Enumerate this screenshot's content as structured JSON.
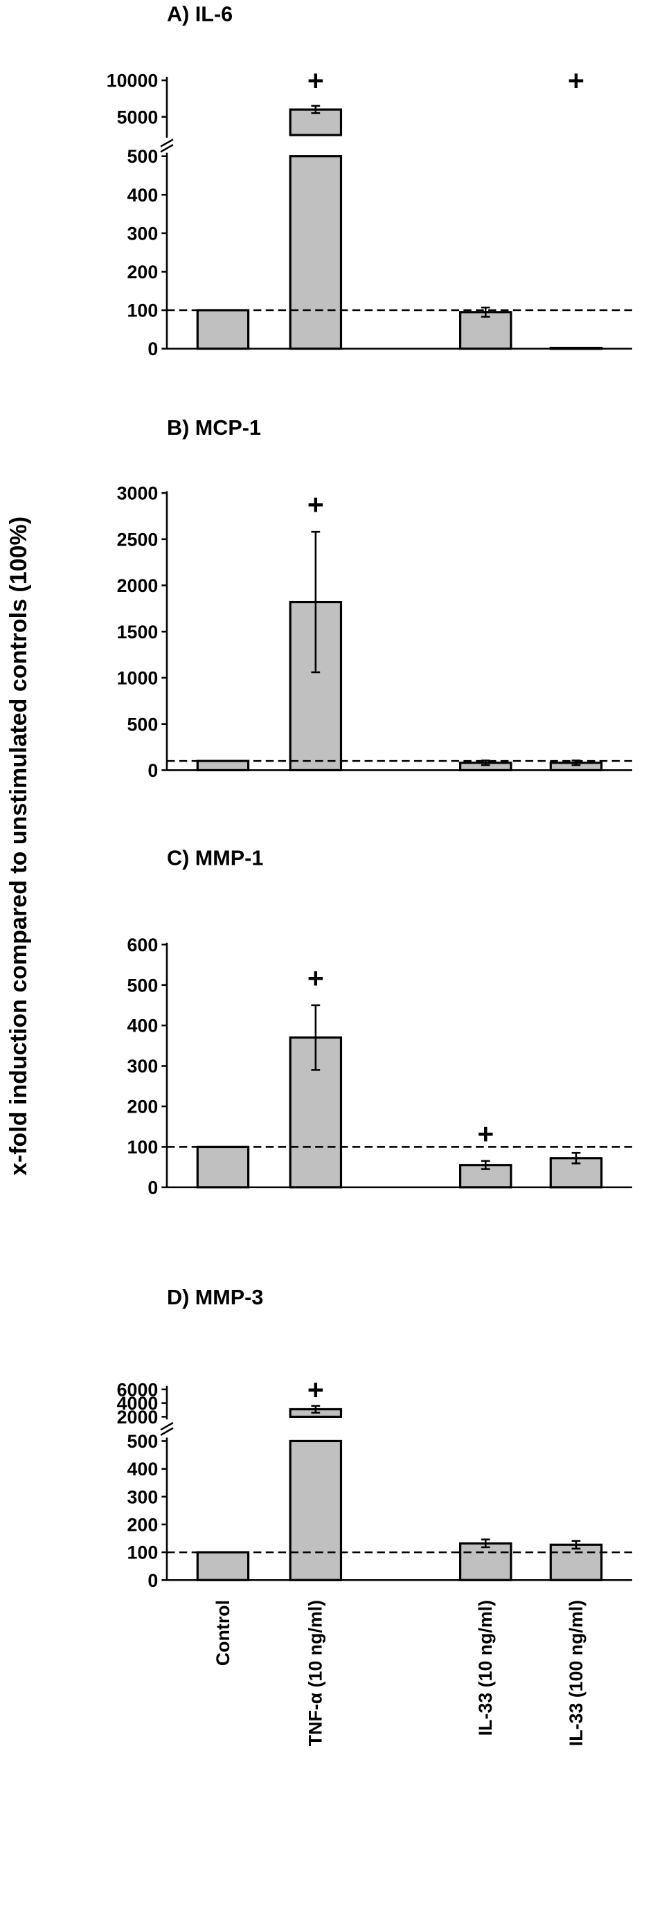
{
  "y_axis_label": "x-fold induction compared to unstimulated controls (100%)",
  "x_categories": [
    "Control",
    "TNF-α (10 ng/ml)",
    "IL-33 (10 ng/ml)",
    "IL-33 (100 ng/ml)"
  ],
  "colors": {
    "bar": "#c0c0c0",
    "edge": "#000000"
  },
  "reference_line": 100,
  "significance_marker": "+",
  "chart_data": [
    {
      "type": "bar",
      "title": "A) IL-6",
      "categories": [
        "Control",
        "TNF-α (10 ng/ml)",
        "IL-33 (10 ng/ml)",
        "IL-33 (100 ng/ml)"
      ],
      "values": [
        100,
        6000,
        95,
        2
      ],
      "errors": [
        0,
        500,
        12,
        0
      ],
      "significant": [
        false,
        true,
        false,
        true
      ],
      "axis_break": true,
      "yticks_lower": [
        0,
        100,
        200,
        300,
        400,
        500
      ],
      "yticks_upper": [
        5000,
        10000
      ],
      "ylim_lower": [
        0,
        500
      ],
      "ylim_upper": [
        2500,
        10000
      ],
      "reference_line": 100
    },
    {
      "type": "bar",
      "title": "B) MCP-1",
      "categories": [
        "Control",
        "TNF-α (10 ng/ml)",
        "IL-33 (10 ng/ml)",
        "IL-33 (100 ng/ml)"
      ],
      "values": [
        100,
        1820,
        80,
        80
      ],
      "errors": [
        0,
        760,
        25,
        25
      ],
      "significant": [
        false,
        true,
        false,
        false
      ],
      "axis_break": false,
      "yticks": [
        0,
        500,
        1000,
        1500,
        2000,
        2500,
        3000
      ],
      "ylim": [
        0,
        3000
      ],
      "reference_line": 100
    },
    {
      "type": "bar",
      "title": "C) MMP-1",
      "categories": [
        "Control",
        "TNF-α (10 ng/ml)",
        "IL-33 (10 ng/ml)",
        "IL-33 (100 ng/ml)"
      ],
      "values": [
        100,
        370,
        55,
        72
      ],
      "errors": [
        0,
        80,
        10,
        13
      ],
      "significant": [
        false,
        true,
        true,
        false
      ],
      "axis_break": false,
      "yticks": [
        0,
        100,
        200,
        300,
        400,
        500,
        600
      ],
      "ylim": [
        0,
        600
      ],
      "reference_line": 100
    },
    {
      "type": "bar",
      "title": "D) MMP-3",
      "categories": [
        "Control",
        "TNF-α (10 ng/ml)",
        "IL-33 (10 ng/ml)",
        "IL-33 (100 ng/ml)"
      ],
      "values": [
        100,
        3100,
        132,
        127
      ],
      "errors": [
        0,
        500,
        14,
        14
      ],
      "significant": [
        false,
        true,
        false,
        false
      ],
      "axis_break": true,
      "yticks_lower": [
        0,
        100,
        200,
        300,
        400,
        500
      ],
      "yticks_upper": [
        2000,
        4000,
        6000
      ],
      "ylim_lower": [
        0,
        500
      ],
      "ylim_upper": [
        2000,
        6000
      ],
      "reference_line": 100
    }
  ]
}
